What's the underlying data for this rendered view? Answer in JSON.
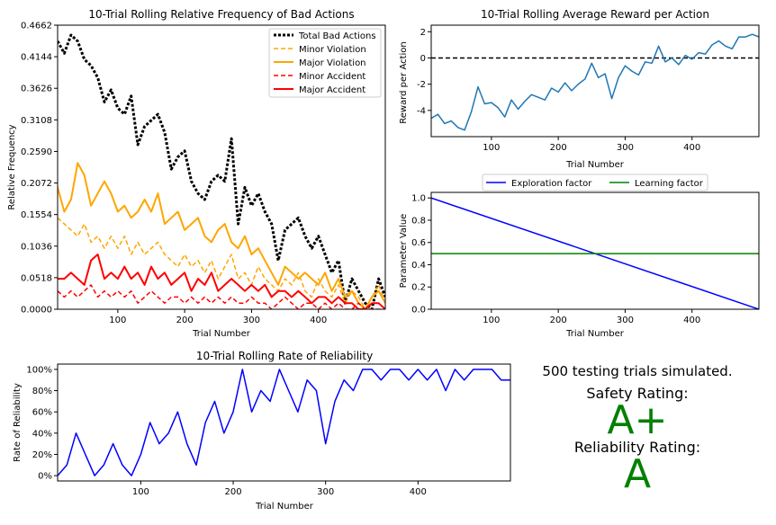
{
  "summary": {
    "trials_text": "500 testing trials simulated.",
    "safety_label": "Safety Rating:",
    "safety_grade": "A+",
    "reliability_label": "Reliability Rating:",
    "reliability_grade": "A",
    "grade_color": "#008000"
  },
  "chart_data": [
    {
      "id": "bad_actions",
      "type": "line",
      "title": "10-Trial Rolling Relative Frequency of Bad Actions",
      "xlabel": "Trial Number",
      "ylabel": "Relative Frequency",
      "xlim": [
        10,
        500
      ],
      "ylim": [
        0,
        0.4662
      ],
      "xticks": [
        100,
        200,
        300,
        400
      ],
      "yticks": [
        "0.0000",
        "0.0518",
        "0.1036",
        "0.1554",
        "0.2072",
        "0.2590",
        "0.3108",
        "0.3626",
        "0.4144",
        "0.4662"
      ],
      "legend_position": "top-right",
      "x": [
        10,
        20,
        30,
        40,
        50,
        60,
        70,
        80,
        90,
        100,
        110,
        120,
        130,
        140,
        150,
        160,
        170,
        180,
        190,
        200,
        210,
        220,
        230,
        240,
        250,
        260,
        270,
        280,
        290,
        300,
        310,
        320,
        330,
        340,
        350,
        360,
        370,
        380,
        390,
        400,
        410,
        420,
        430,
        440,
        450,
        460,
        470,
        480,
        490,
        500
      ],
      "series": [
        {
          "name": "Total Bad Actions",
          "color": "#000000",
          "dash": "3,2",
          "width": 3,
          "values": [
            0.44,
            0.42,
            0.45,
            0.44,
            0.41,
            0.4,
            0.38,
            0.34,
            0.36,
            0.33,
            0.32,
            0.35,
            0.27,
            0.3,
            0.31,
            0.32,
            0.29,
            0.23,
            0.25,
            0.26,
            0.21,
            0.19,
            0.18,
            0.21,
            0.22,
            0.21,
            0.28,
            0.14,
            0.2,
            0.17,
            0.19,
            0.16,
            0.14,
            0.08,
            0.13,
            0.14,
            0.15,
            0.12,
            0.1,
            0.12,
            0.09,
            0.06,
            0.08,
            0.01,
            0.05,
            0.03,
            0.01,
            0.0,
            0.05,
            0.02
          ]
        },
        {
          "name": "Minor Violation",
          "color": "#FFA500",
          "dash": "5,3",
          "width": 1.5,
          "values": [
            0.15,
            0.14,
            0.13,
            0.12,
            0.14,
            0.11,
            0.12,
            0.1,
            0.12,
            0.1,
            0.12,
            0.09,
            0.11,
            0.09,
            0.1,
            0.11,
            0.09,
            0.08,
            0.07,
            0.09,
            0.07,
            0.08,
            0.06,
            0.08,
            0.05,
            0.07,
            0.09,
            0.05,
            0.06,
            0.04,
            0.07,
            0.05,
            0.04,
            0.03,
            0.05,
            0.04,
            0.06,
            0.03,
            0.02,
            0.05,
            0.03,
            0.02,
            0.04,
            0.01,
            0.03,
            0.02,
            0.0,
            0.02,
            0.04,
            0.01
          ]
        },
        {
          "name": "Major Violation",
          "color": "#FFA500",
          "dash": "",
          "width": 2,
          "values": [
            0.2,
            0.16,
            0.18,
            0.24,
            0.22,
            0.17,
            0.19,
            0.21,
            0.19,
            0.16,
            0.17,
            0.15,
            0.16,
            0.18,
            0.16,
            0.19,
            0.14,
            0.15,
            0.16,
            0.13,
            0.14,
            0.15,
            0.12,
            0.11,
            0.13,
            0.14,
            0.11,
            0.1,
            0.12,
            0.09,
            0.1,
            0.08,
            0.06,
            0.04,
            0.07,
            0.06,
            0.05,
            0.06,
            0.05,
            0.04,
            0.06,
            0.03,
            0.05,
            0.02,
            0.03,
            0.01,
            0.0,
            0.02,
            0.03,
            0.01
          ]
        },
        {
          "name": "Minor Accident",
          "color": "#FF0000",
          "dash": "5,3",
          "width": 1.5,
          "values": [
            0.03,
            0.02,
            0.03,
            0.02,
            0.03,
            0.04,
            0.02,
            0.03,
            0.02,
            0.03,
            0.02,
            0.03,
            0.01,
            0.02,
            0.03,
            0.02,
            0.01,
            0.02,
            0.02,
            0.01,
            0.02,
            0.01,
            0.02,
            0.01,
            0.02,
            0.01,
            0.02,
            0.01,
            0.01,
            0.02,
            0.01,
            0.01,
            0.0,
            0.01,
            0.02,
            0.01,
            0.0,
            0.01,
            0.01,
            0.0,
            0.01,
            0.0,
            0.01,
            0.0,
            0.0,
            0.01,
            0.0,
            0.0,
            0.0,
            0.0
          ]
        },
        {
          "name": "Major Accident",
          "color": "#FF0000",
          "dash": "",
          "width": 2,
          "values": [
            0.05,
            0.05,
            0.06,
            0.05,
            0.04,
            0.08,
            0.09,
            0.05,
            0.06,
            0.05,
            0.07,
            0.05,
            0.06,
            0.04,
            0.07,
            0.05,
            0.06,
            0.04,
            0.05,
            0.06,
            0.03,
            0.05,
            0.04,
            0.06,
            0.03,
            0.04,
            0.05,
            0.04,
            0.03,
            0.04,
            0.03,
            0.04,
            0.02,
            0.03,
            0.03,
            0.02,
            0.03,
            0.02,
            0.01,
            0.02,
            0.02,
            0.01,
            0.02,
            0.01,
            0.01,
            0.0,
            0.0,
            0.01,
            0.01,
            0.0
          ]
        }
      ]
    },
    {
      "id": "reward",
      "type": "line",
      "title": "10-Trial Rolling Average Reward per Action",
      "xlabel": "Trial Number",
      "ylabel": "Reward per Action",
      "xlim": [
        10,
        500
      ],
      "ylim": [
        -6,
        2.5
      ],
      "xticks": [
        100,
        200,
        300,
        400
      ],
      "yticks": [
        -4,
        -2,
        0,
        2
      ],
      "reference_line": 0,
      "x": [
        10,
        20,
        30,
        40,
        50,
        60,
        70,
        80,
        90,
        100,
        110,
        120,
        130,
        140,
        150,
        160,
        170,
        180,
        190,
        200,
        210,
        220,
        230,
        240,
        250,
        260,
        270,
        280,
        290,
        300,
        310,
        320,
        330,
        340,
        350,
        360,
        370,
        380,
        390,
        400,
        410,
        420,
        430,
        440,
        450,
        460,
        470,
        480,
        490,
        500
      ],
      "series": [
        {
          "name": "Reward",
          "color": "#1F77B4",
          "values": [
            -4.6,
            -4.3,
            -5.0,
            -4.8,
            -5.3,
            -5.5,
            -4.1,
            -2.2,
            -3.5,
            -3.4,
            -3.8,
            -4.5,
            -3.2,
            -3.9,
            -3.3,
            -2.8,
            -3.0,
            -3.2,
            -2.3,
            -2.6,
            -1.9,
            -2.5,
            -2.0,
            -1.6,
            -0.4,
            -1.5,
            -1.2,
            -3.1,
            -1.5,
            -0.6,
            -1.0,
            -1.3,
            -0.3,
            -0.4,
            0.9,
            -0.3,
            0.0,
            -0.5,
            0.2,
            -0.1,
            0.4,
            0.3,
            1.0,
            1.3,
            0.9,
            0.7,
            1.6,
            1.6,
            1.8,
            1.6
          ]
        }
      ]
    },
    {
      "id": "parameters",
      "type": "line",
      "xlabel": "Trial Number",
      "ylabel": "Parameter Value",
      "xlim": [
        10,
        500
      ],
      "ylim": [
        0,
        1.05
      ],
      "xticks": [
        100,
        200,
        300,
        400
      ],
      "yticks": [
        "0.0",
        "0.2",
        "0.4",
        "0.6",
        "0.8",
        "1.0"
      ],
      "legend_position": "top",
      "x": [
        10,
        500
      ],
      "series": [
        {
          "name": "Exploration factor",
          "color": "#0000FF",
          "values": [
            1.0,
            0.0
          ]
        },
        {
          "name": "Learning factor",
          "color": "#008000",
          "values": [
            0.5,
            0.5
          ]
        }
      ]
    },
    {
      "id": "reliability",
      "type": "line",
      "title": "10-Trial Rolling Rate of Reliability",
      "xlabel": "Trial Number",
      "ylabel": "Rate of Reliability",
      "xlim": [
        10,
        500
      ],
      "ylim": [
        -5,
        105
      ],
      "xticks": [
        100,
        200,
        300,
        400
      ],
      "yticks": [
        "0%",
        "20%",
        "40%",
        "60%",
        "80%",
        "100%"
      ],
      "x": [
        10,
        20,
        30,
        40,
        50,
        60,
        70,
        80,
        90,
        100,
        110,
        120,
        130,
        140,
        150,
        160,
        170,
        180,
        190,
        200,
        210,
        220,
        230,
        240,
        250,
        260,
        270,
        280,
        290,
        300,
        310,
        320,
        330,
        340,
        350,
        360,
        370,
        380,
        390,
        400,
        410,
        420,
        430,
        440,
        450,
        460,
        470,
        480,
        490,
        500
      ],
      "series": [
        {
          "name": "Reliability",
          "color": "#0000FF",
          "values": [
            0,
            10,
            40,
            20,
            0,
            10,
            30,
            10,
            0,
            20,
            50,
            30,
            40,
            60,
            30,
            10,
            50,
            70,
            40,
            60,
            100,
            60,
            80,
            70,
            100,
            80,
            60,
            90,
            80,
            30,
            70,
            90,
            80,
            100,
            100,
            90,
            100,
            100,
            90,
            100,
            90,
            100,
            80,
            100,
            90,
            100,
            100,
            100,
            90,
            90
          ]
        }
      ]
    }
  ]
}
